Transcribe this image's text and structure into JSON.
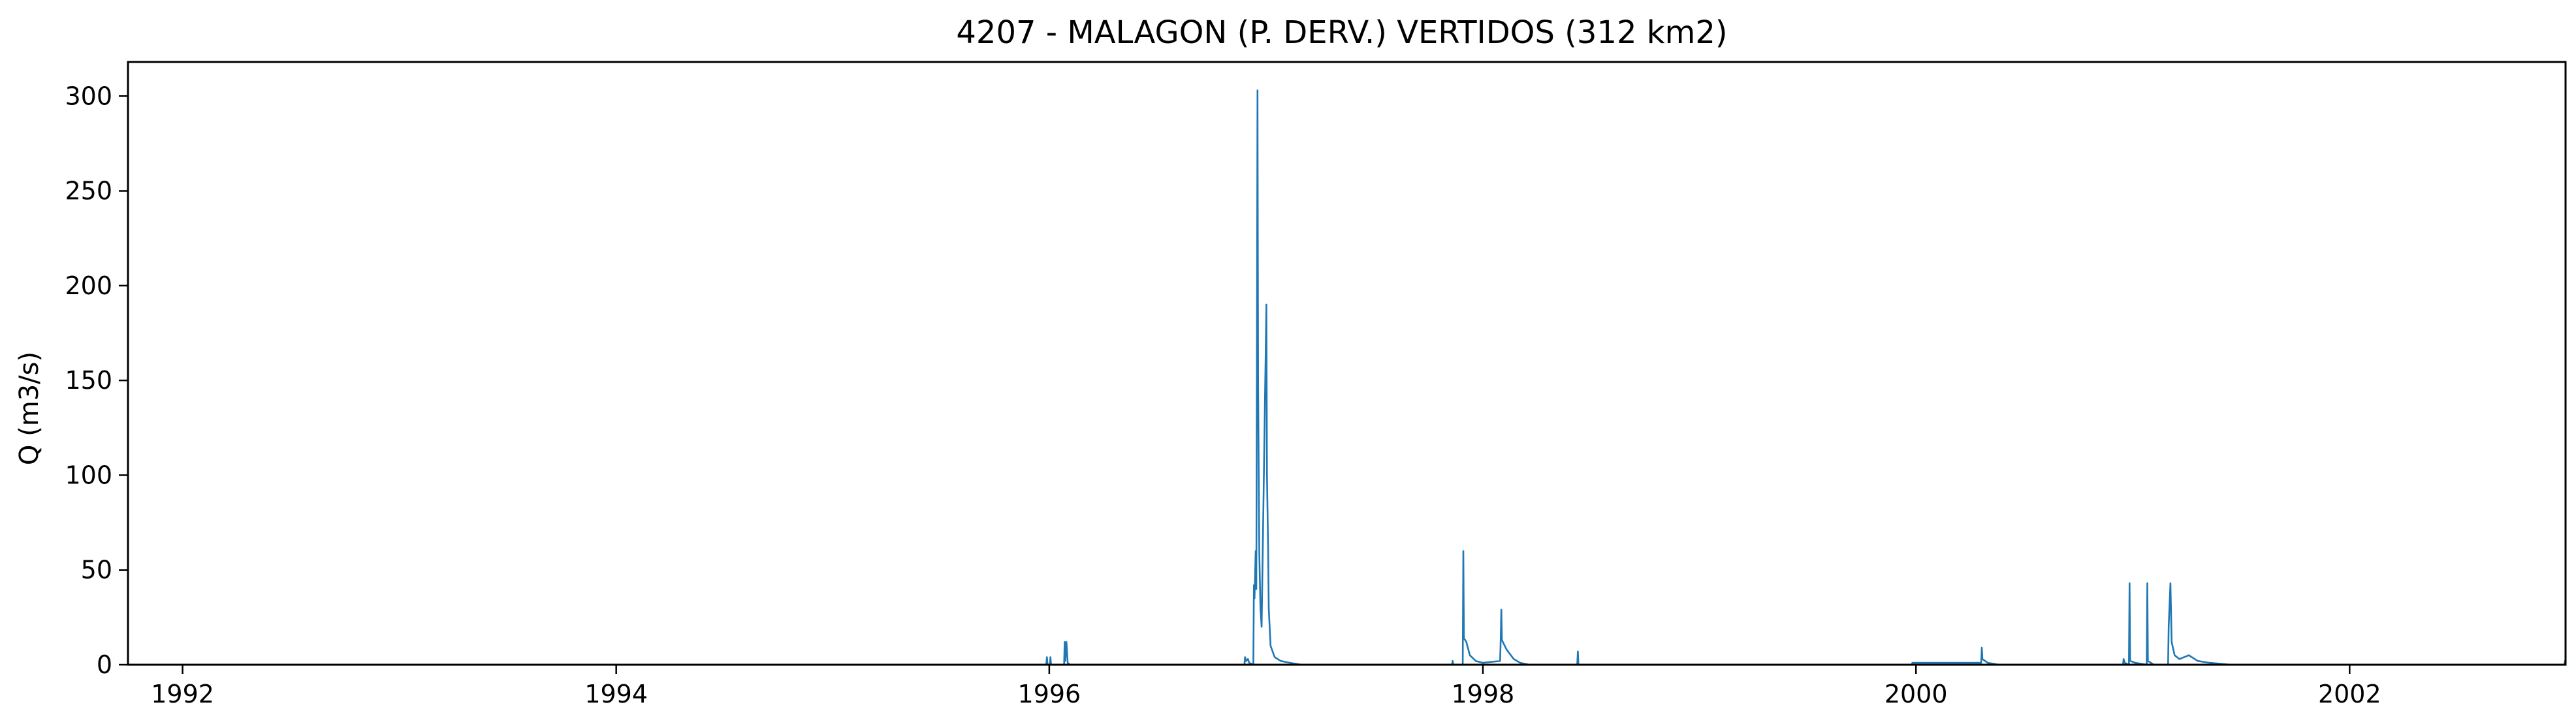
{
  "chart_data": {
    "type": "line",
    "title": "4207 - MALAGON (P. DERV.) VERTIDOS (312 km2)",
    "xlabel": "",
    "ylabel": "Q (m3/s)",
    "xlim": [
      "1991-10-01",
      "2002-12-31"
    ],
    "ylim": [
      0,
      318
    ],
    "x_ticks": [
      "1992",
      "1994",
      "1996",
      "1998",
      "2000",
      "2002"
    ],
    "y_ticks": [
      "0",
      "50",
      "100",
      "150",
      "200",
      "250",
      "300"
    ],
    "grid": false,
    "line_color": "#1f77b4",
    "series": [
      {
        "points": [
          [
            "1991-10-01",
            0
          ],
          [
            "1995-12-27",
            0
          ],
          [
            "1995-12-28",
            4
          ],
          [
            "1995-12-29",
            0
          ],
          [
            "1996-01-02",
            0
          ],
          [
            "1996-01-03",
            4
          ],
          [
            "1996-01-04",
            0
          ],
          [
            "1996-01-26",
            0
          ],
          [
            "1996-01-27",
            12
          ],
          [
            "1996-01-28",
            2
          ],
          [
            "1996-01-30",
            12
          ],
          [
            "1996-02-01",
            1
          ],
          [
            "1996-02-05",
            0
          ],
          [
            "1996-11-25",
            0
          ],
          [
            "1996-11-26",
            4
          ],
          [
            "1996-11-28",
            2
          ],
          [
            "1996-12-01",
            3
          ],
          [
            "1996-12-03",
            1
          ],
          [
            "1996-12-10",
            0
          ],
          [
            "1996-12-11",
            42
          ],
          [
            "1996-12-12",
            35
          ],
          [
            "1996-12-14",
            60
          ],
          [
            "1996-12-15",
            40
          ],
          [
            "1996-12-17",
            303
          ],
          [
            "1996-12-18",
            150
          ],
          [
            "1996-12-20",
            60
          ],
          [
            "1996-12-22",
            30
          ],
          [
            "1996-12-24",
            20
          ],
          [
            "1997-01-01",
            190
          ],
          [
            "1997-01-02",
            100
          ],
          [
            "1997-01-04",
            60
          ],
          [
            "1997-01-05",
            30
          ],
          [
            "1997-01-08",
            10
          ],
          [
            "1997-01-15",
            4
          ],
          [
            "1997-01-25",
            2
          ],
          [
            "1997-02-10",
            1
          ],
          [
            "1997-03-01",
            0
          ],
          [
            "1997-11-10",
            0
          ],
          [
            "1997-11-11",
            2
          ],
          [
            "1997-11-12",
            0
          ],
          [
            "1997-11-28",
            0
          ],
          [
            "1997-11-29",
            60
          ],
          [
            "1997-11-30",
            14
          ],
          [
            "1997-12-04",
            12
          ],
          [
            "1997-12-10",
            5
          ],
          [
            "1997-12-20",
            2
          ],
          [
            "1998-01-01",
            1
          ],
          [
            "1998-01-30",
            2
          ],
          [
            "1998-01-31",
            14
          ],
          [
            "1998-02-01",
            29
          ],
          [
            "1998-02-02",
            13
          ],
          [
            "1998-02-10",
            8
          ],
          [
            "1998-02-22",
            3
          ],
          [
            "1998-03-05",
            1
          ],
          [
            "1998-03-20",
            0
          ],
          [
            "1998-06-09",
            0
          ],
          [
            "1998-06-10",
            7
          ],
          [
            "1998-06-11",
            0
          ],
          [
            "1999-12-25",
            0
          ],
          [
            "1999-12-26",
            1
          ],
          [
            "2000-03-31",
            1
          ],
          [
            "2000-04-20",
            1
          ],
          [
            "2000-04-21",
            9
          ],
          [
            "2000-04-22",
            3
          ],
          [
            "2000-05-01",
            1
          ],
          [
            "2000-05-20",
            0
          ],
          [
            "2000-12-15",
            0
          ],
          [
            "2000-12-16",
            3
          ],
          [
            "2000-12-18",
            1
          ],
          [
            "2000-12-25",
            0
          ],
          [
            "2000-12-26",
            43
          ],
          [
            "2000-12-27",
            2
          ],
          [
            "2001-01-05",
            1
          ],
          [
            "2001-01-24",
            0
          ],
          [
            "2001-01-25",
            43
          ],
          [
            "2001-01-26",
            2
          ],
          [
            "2001-02-05",
            0
          ],
          [
            "2001-03-01",
            0
          ],
          [
            "2001-03-02",
            20
          ],
          [
            "2001-03-05",
            43
          ],
          [
            "2001-03-07",
            12
          ],
          [
            "2001-03-12",
            5
          ],
          [
            "2001-03-20",
            3
          ],
          [
            "2001-04-05",
            5
          ],
          [
            "2001-04-20",
            2
          ],
          [
            "2001-05-10",
            1
          ],
          [
            "2001-06-15",
            0
          ],
          [
            "2002-12-29",
            0
          ],
          [
            "2002-12-30",
            2
          ],
          [
            "2002-12-31",
            2
          ]
        ]
      }
    ]
  }
}
